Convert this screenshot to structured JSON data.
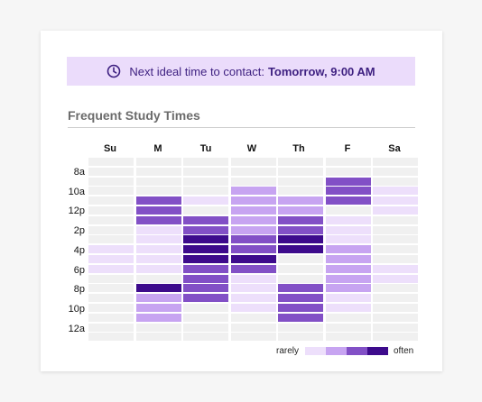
{
  "banner": {
    "icon": "clock-icon",
    "label": "Next ideal time to contact:",
    "value": "Tomorrow, 9:00 AM"
  },
  "section_title": "Frequent Study Times",
  "days": [
    "Su",
    "M",
    "Tu",
    "W",
    "Th",
    "F",
    "Sa"
  ],
  "hour_labels": [
    "8a",
    "10a",
    "12p",
    "2p",
    "4p",
    "6p",
    "8p",
    "10p",
    "12a"
  ],
  "legend": {
    "low": "rarely",
    "high": "often"
  },
  "colors": {
    "empty": "#f0f0f0",
    "levels": [
      "#f0f0f0",
      "#eddffb",
      "#c7a4f1",
      "#8250c6",
      "#3d0b8c"
    ]
  },
  "heatmap_levels": [
    [
      0,
      0,
      0,
      0,
      0,
      0,
      0
    ],
    [
      0,
      0,
      0,
      0,
      0,
      0,
      0
    ],
    [
      0,
      0,
      0,
      0,
      0,
      3,
      0
    ],
    [
      0,
      0,
      0,
      2,
      0,
      3,
      1
    ],
    [
      0,
      3,
      1,
      2,
      2,
      3,
      1
    ],
    [
      0,
      3,
      0,
      2,
      2,
      0,
      1
    ],
    [
      0,
      3,
      3,
      2,
      3,
      1,
      0
    ],
    [
      0,
      1,
      3,
      2,
      3,
      1,
      0
    ],
    [
      0,
      1,
      4,
      3,
      4,
      1,
      0
    ],
    [
      1,
      1,
      4,
      3,
      4,
      2,
      0
    ],
    [
      1,
      1,
      4,
      4,
      0,
      2,
      0
    ],
    [
      1,
      1,
      3,
      3,
      0,
      2,
      1
    ],
    [
      0,
      0,
      3,
      1,
      0,
      2,
      1
    ],
    [
      0,
      4,
      3,
      1,
      3,
      2,
      0
    ],
    [
      0,
      2,
      3,
      1,
      3,
      1,
      0
    ],
    [
      0,
      2,
      0,
      1,
      3,
      1,
      0
    ],
    [
      0,
      2,
      0,
      0,
      3,
      0,
      0
    ],
    [
      0,
      0,
      0,
      0,
      0,
      0,
      0
    ],
    [
      0,
      0,
      0,
      0,
      0,
      0,
      0
    ]
  ]
}
